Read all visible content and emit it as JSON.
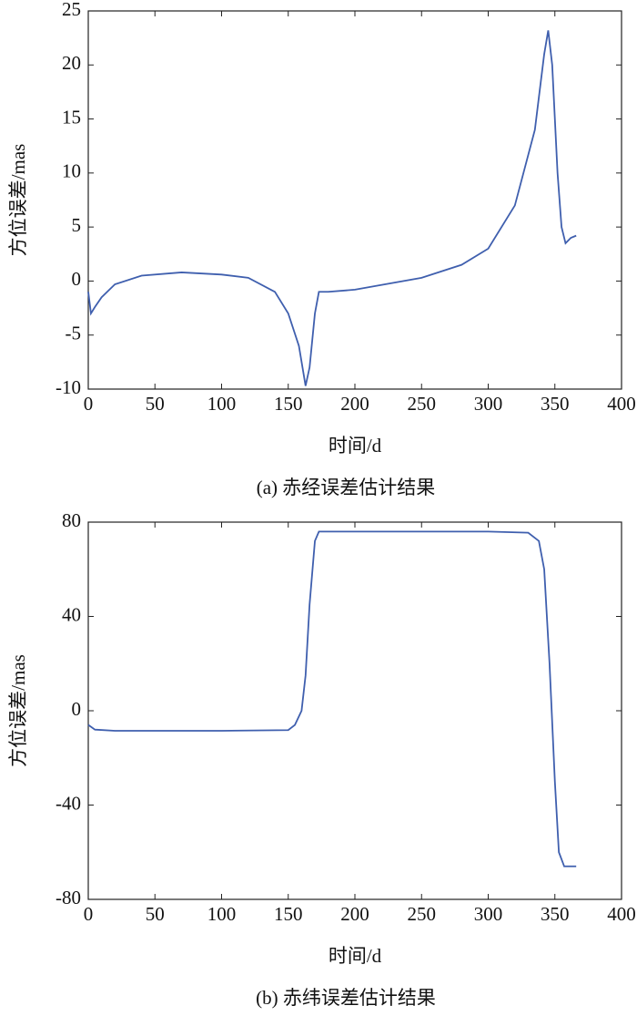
{
  "chart_data": [
    {
      "type": "line",
      "title": "(a) 赤经误差估计结果",
      "x_label": "时间/d",
      "y_label": "方位误差/mas",
      "xlim": [
        0,
        400
      ],
      "xticks": [
        0,
        50,
        100,
        150,
        200,
        250,
        300,
        350,
        400
      ],
      "ylim": [
        -10,
        25
      ],
      "yticks": [
        -10,
        -5,
        0,
        5,
        10,
        15,
        20,
        25
      ],
      "x": [
        0,
        2,
        5,
        10,
        20,
        40,
        70,
        100,
        120,
        140,
        150,
        158,
        163,
        166,
        170,
        173,
        180,
        200,
        250,
        280,
        300,
        320,
        335,
        342,
        345,
        348,
        352,
        355,
        358,
        362,
        366
      ],
      "series": [
        {
          "name": "赤经误差",
          "color": "#3f5fae",
          "values": [
            -1,
            -3,
            -2.4,
            -1.5,
            -0.3,
            0.5,
            0.8,
            0.6,
            0.3,
            -1,
            -3,
            -6,
            -9.7,
            -8,
            -3,
            -1,
            -1,
            -0.8,
            0.3,
            1.5,
            3,
            7,
            14,
            21,
            23.2,
            20,
            10,
            5,
            3.5,
            4,
            4.2
          ]
        }
      ]
    },
    {
      "type": "line",
      "title": "(b) 赤纬误差估计结果",
      "x_label": "时间/d",
      "y_label": "方位误差/mas",
      "xlim": [
        0,
        400
      ],
      "xticks": [
        0,
        50,
        100,
        150,
        200,
        250,
        300,
        350,
        400
      ],
      "ylim": [
        -80,
        80
      ],
      "yticks": [
        -80,
        -40,
        0,
        40,
        80
      ],
      "x": [
        0,
        5,
        20,
        100,
        150,
        155,
        160,
        163,
        166,
        170,
        173,
        200,
        300,
        330,
        338,
        342,
        346,
        350,
        353,
        357,
        366
      ],
      "series": [
        {
          "name": "赤纬误差",
          "color": "#3f5fae",
          "values": [
            -6,
            -8,
            -8.5,
            -8.5,
            -8.2,
            -6,
            0,
            15,
            45,
            72,
            76,
            76,
            76,
            75.5,
            72,
            60,
            20,
            -30,
            -60,
            -66,
            -66
          ]
        }
      ]
    }
  ]
}
